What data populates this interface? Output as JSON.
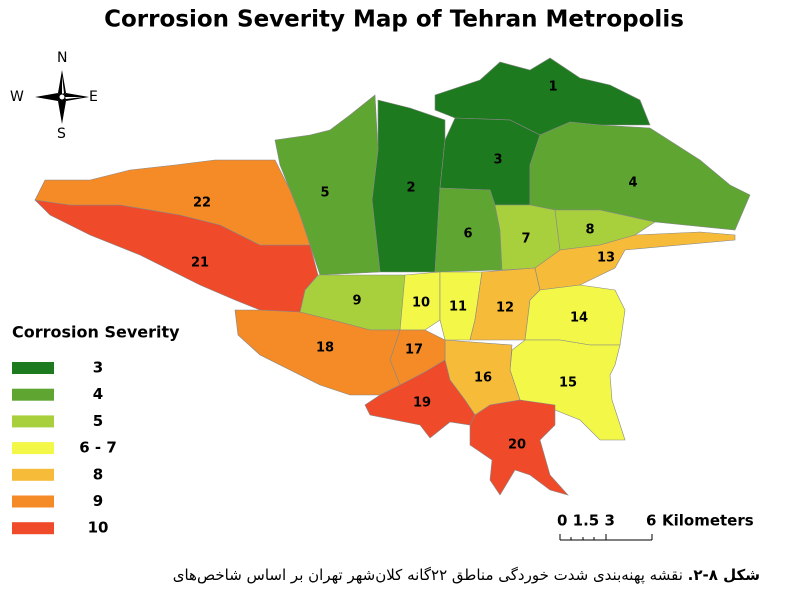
{
  "header": {
    "title": "Corrosion Severity Map of Tehran Metropolis"
  },
  "compass": {
    "n": "N",
    "s": "S",
    "e": "E",
    "w": "W"
  },
  "districts": [
    {
      "label": "1",
      "color": "#1e7a1e"
    },
    {
      "label": "2",
      "color": "#1e7a1e"
    },
    {
      "label": "3",
      "color": "#1e7a1e"
    },
    {
      "label": "4",
      "color": "#5ea532"
    },
    {
      "label": "5",
      "color": "#5ea532"
    },
    {
      "label": "6",
      "color": "#5ea532"
    },
    {
      "label": "7",
      "color": "#a8d03c"
    },
    {
      "label": "8",
      "color": "#a8d03c"
    },
    {
      "label": "9",
      "color": "#a8d03c"
    },
    {
      "label": "10",
      "color": "#f2f748"
    },
    {
      "label": "11",
      "color": "#f2f748"
    },
    {
      "label": "12",
      "color": "#f7bb3a"
    },
    {
      "label": "13",
      "color": "#f7bb3a"
    },
    {
      "label": "14",
      "color": "#f2f748"
    },
    {
      "label": "15",
      "color": "#f2f748"
    },
    {
      "label": "16",
      "color": "#f7bb3a"
    },
    {
      "label": "17",
      "color": "#f58b27"
    },
    {
      "label": "18",
      "color": "#f58b27"
    },
    {
      "label": "19",
      "color": "#ef4a2a"
    },
    {
      "label": "20",
      "color": "#ef4a2a"
    },
    {
      "label": "21",
      "color": "#ef4a2a"
    },
    {
      "label": "22",
      "color": "#f58b27"
    }
  ],
  "legend": {
    "title": "Corrosion Severity",
    "items": [
      {
        "label": "3",
        "color": "#1e7a1e"
      },
      {
        "label": "4",
        "color": "#5ea532"
      },
      {
        "label": "5",
        "color": "#a8d03c"
      },
      {
        "label": "6 - 7",
        "color": "#f2f748"
      },
      {
        "label": "8",
        "color": "#f7bb3a"
      },
      {
        "label": "9",
        "color": "#f58b27"
      },
      {
        "label": "10",
        "color": "#ef4a2a"
      }
    ]
  },
  "scale_bar": {
    "ticks": "0 1.5 3",
    "end": "6",
    "unit": "Kilometers"
  },
  "caption": {
    "figure": "شکل ۸-۲.",
    "text": "نقشه پهنه‌بندی شدت خوردگی مناطق ۲۲گانه کلان‌شهر تهران بر اساس شاخص‌های"
  }
}
